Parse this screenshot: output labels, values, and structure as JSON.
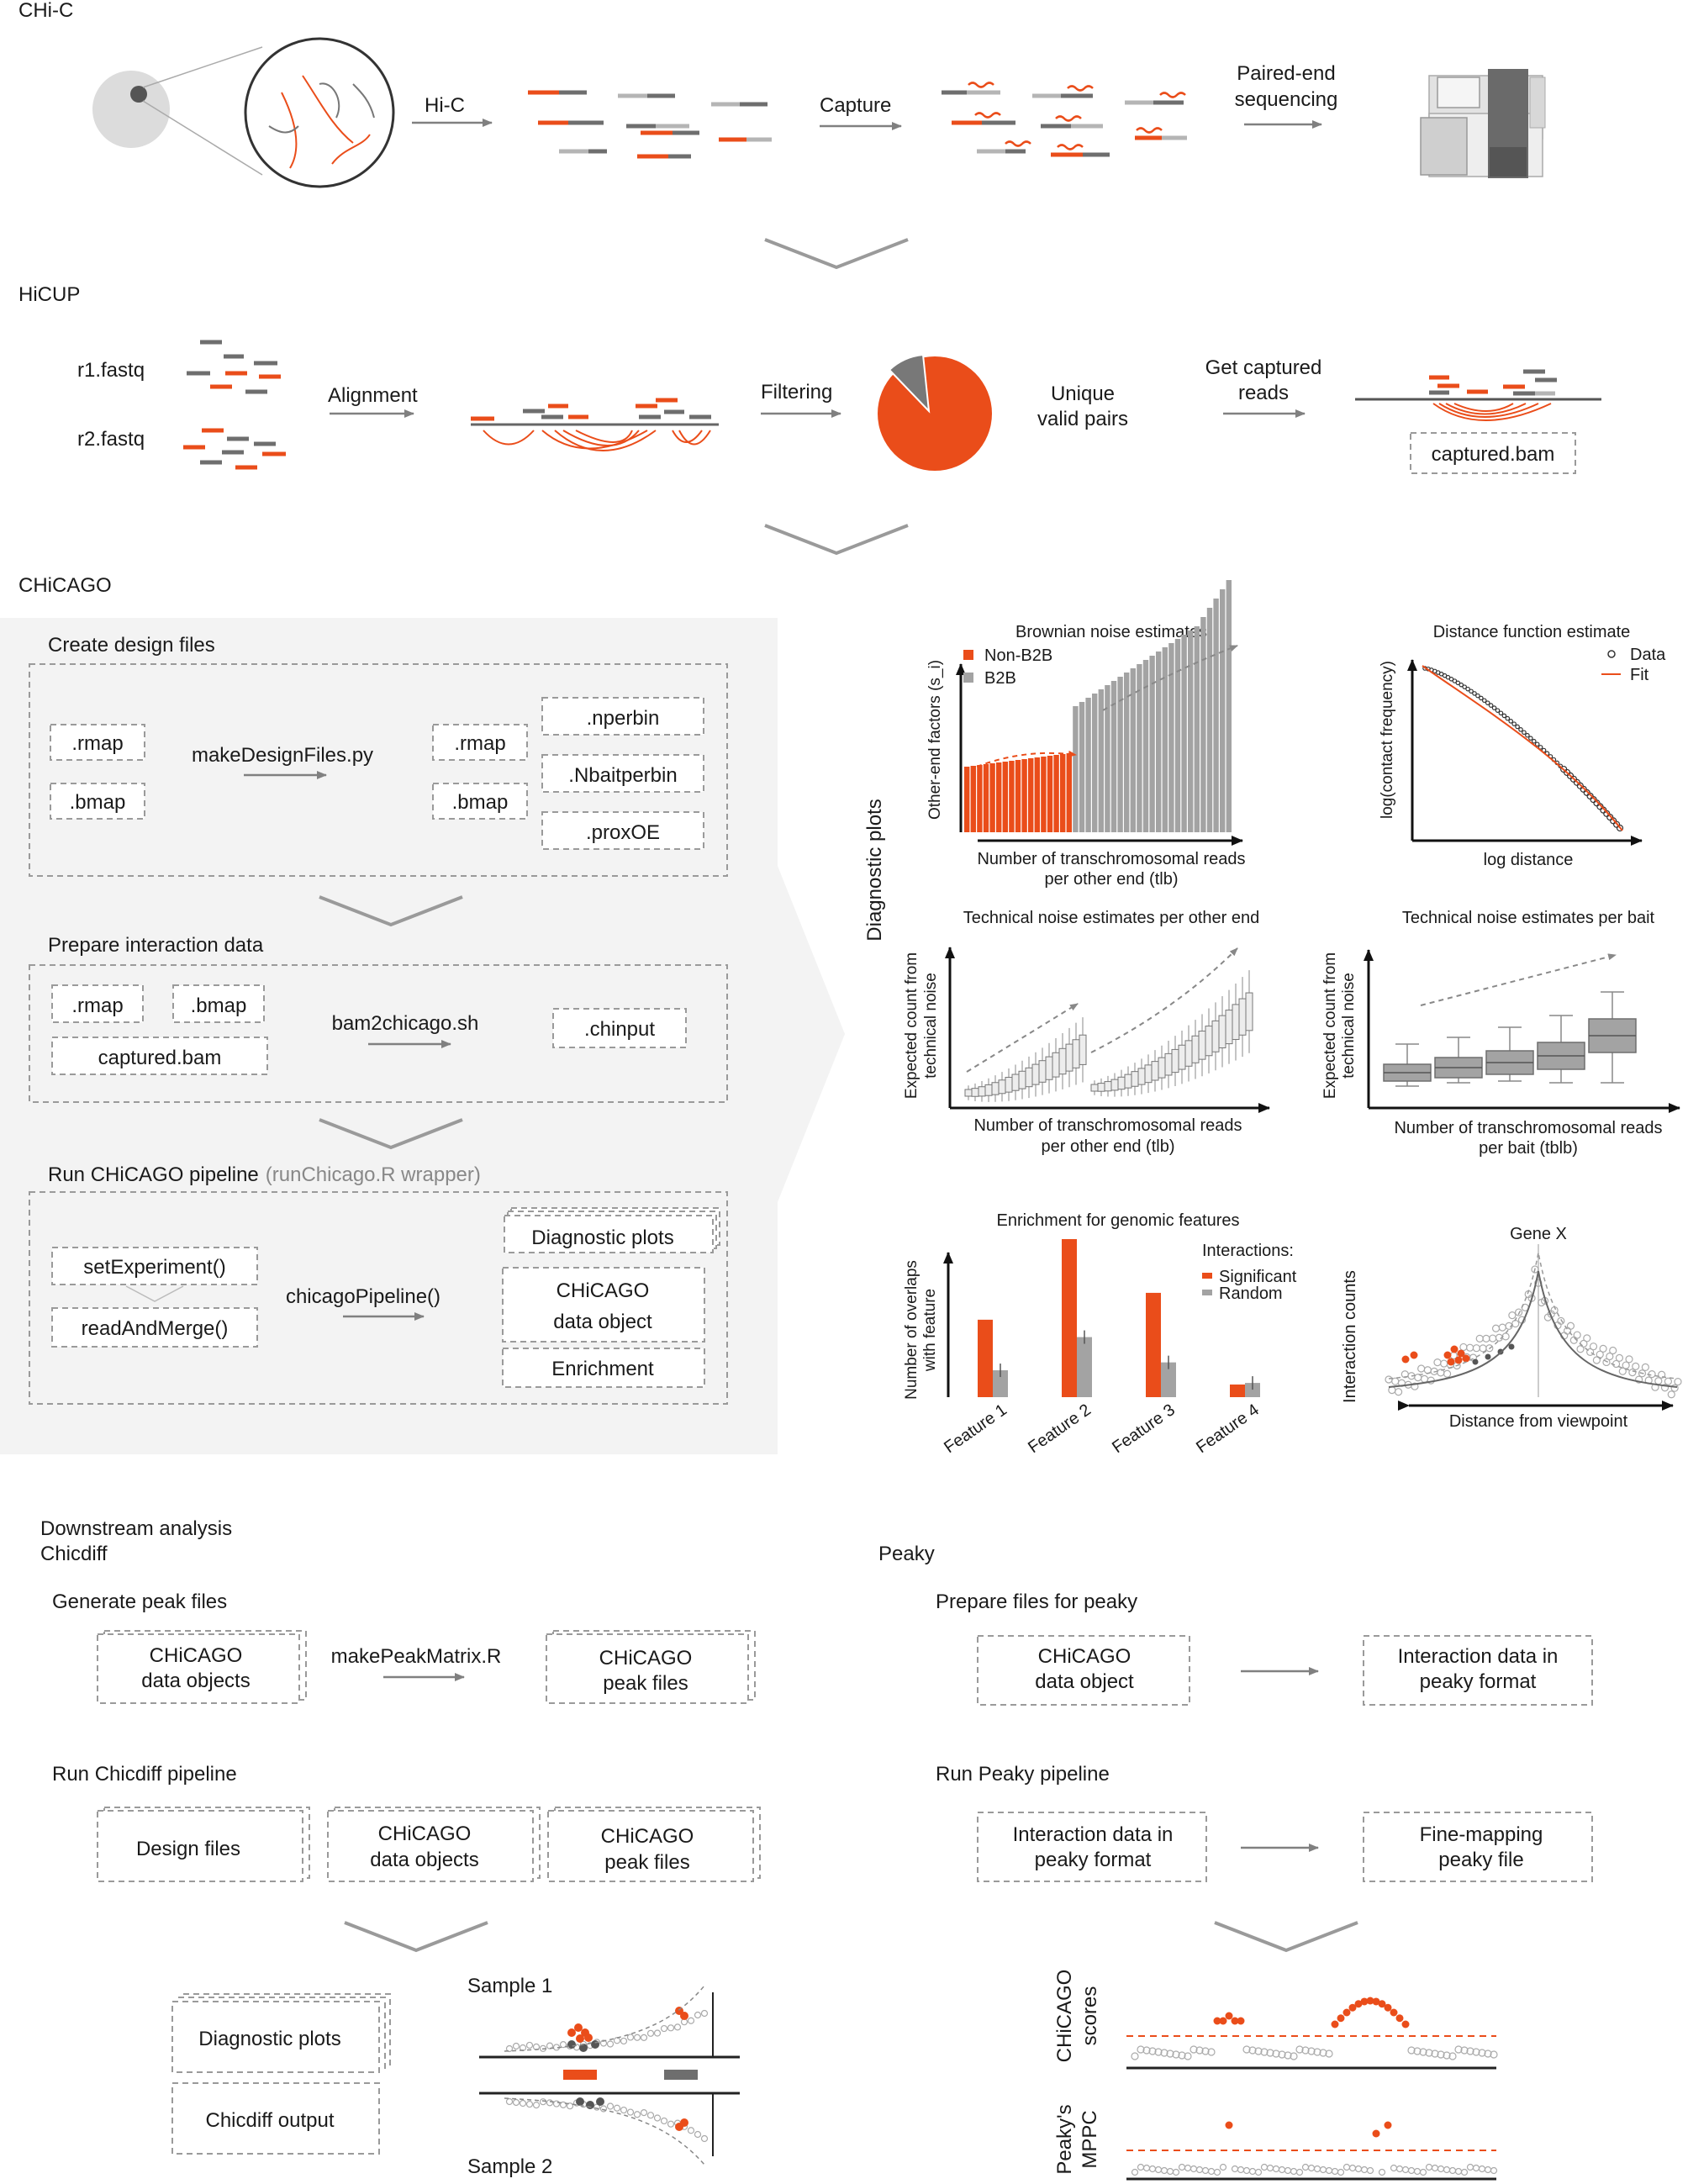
{
  "sections": {
    "chic": "CHi-C",
    "hicup": "HiCUP",
    "chicago": "CHiCAGO",
    "downstream": "Downstream analysis",
    "chicdiff": "Chicdiff",
    "peaky": "Peaky"
  },
  "chic": {
    "hic_label": "Hi-C",
    "capture_label": "Capture",
    "paired_line1": "Paired-end",
    "paired_line2": "sequencing"
  },
  "hicup": {
    "r1": "r1.fastq",
    "r2": "r2.fastq",
    "alignment": "Alignment",
    "filtering": "Filtering",
    "unique_line1": "Unique",
    "unique_line2": "valid pairs",
    "getcap_line1": "Get captured",
    "getcap_line2": "reads",
    "captured_bam": "captured.bam"
  },
  "chicago": {
    "design_title": "Create design files",
    "rmap": ".rmap",
    "bmap": ".bmap",
    "makeDesign": "makeDesignFiles.py",
    "nperbin": ".nperbin",
    "nbaitperbin": ".Nbaitperbin",
    "proxoe": ".proxOE",
    "prepare_title": "Prepare interaction data",
    "captured_bam": "captured.bam",
    "bam2chicago": "bam2chicago.sh",
    "chinput": ".chinput",
    "run_title": "Run CHiCAGO pipeline",
    "run_wrapper": "(runChicago.R wrapper)",
    "setExperiment": "setExperiment()",
    "readAndMerge": "readAndMerge()",
    "chicagoPipeline": "chicagoPipeline()",
    "out_diag": "Diagnostic plots",
    "out_obj1": "CHiCAGO",
    "out_obj2": "data object",
    "out_enrich": "Enrichment",
    "diag_vertical": "Diagnostic plots"
  },
  "plots": {
    "brownian": {
      "title": "Brownian noise estimates",
      "ylabel": "Other-end factors (s_i)",
      "xlabel1": "Number of transchromosomal reads",
      "xlabel2": "per other end (tlb)",
      "legend": [
        "Non-B2B",
        "B2B"
      ],
      "colors": [
        "#ea4d1a",
        "#a3a3a3"
      ]
    },
    "distance": {
      "title": "Distance function estimate",
      "ylabel": "log(contact frequency)",
      "xlabel": "log distance",
      "legend": [
        "Data",
        "Fit"
      ]
    },
    "tech_oe": {
      "title": "Technical noise estimates per other end",
      "ylabel1": "Expected count from",
      "ylabel2": "technical noise",
      "xlabel1": "Number of transchromosomal reads",
      "xlabel2": "per other end (tlb)"
    },
    "tech_bait": {
      "title": "Technical noise estimates per bait",
      "ylabel1": "Expected count from",
      "ylabel2": "technical noise",
      "xlabel1": "Number of transchromosomal reads",
      "xlabel2": "per bait (tblb)"
    },
    "enrichment": {
      "title": "Enrichment for genomic features",
      "ylabel1": "Number of overlaps",
      "ylabel2": "with feature",
      "legend_title": "Interactions:",
      "legend": [
        "Significant",
        "Random"
      ],
      "categories": [
        "Feature 1",
        "Feature 2",
        "Feature 3",
        "Feature 4"
      ],
      "significant": [
        0.49,
        1.0,
        0.66,
        0.08
      ],
      "random": [
        0.17,
        0.38,
        0.22,
        0.09
      ],
      "colors": [
        "#ea4d1a",
        "#a3a3a3"
      ]
    },
    "genex": {
      "title": "Gene X",
      "ylabel": "Interaction counts",
      "xlabel": "Distance from viewpoint"
    }
  },
  "chicdiff": {
    "gen_title": "Generate peak files",
    "obj_line1": "CHiCAGO",
    "obj_line2": "data objects",
    "makePeak": "makePeakMatrix.R",
    "peak_line1": "CHiCAGO",
    "peak_line2": "peak files",
    "run_title": "Run Chicdiff pipeline",
    "design_files": "Design files",
    "out_diag": "Diagnostic plots",
    "out_chicdiff": "Chicdiff output",
    "sample1": "Sample 1",
    "sample2": "Sample 2"
  },
  "peaky": {
    "prep_title": "Prepare files for peaky",
    "obj_line1": "CHiCAGO",
    "obj_line2": "data object",
    "fmt_line1": "Interaction data in",
    "fmt_line2": "peaky format",
    "run_title": "Run Peaky pipeline",
    "fine_line1": "Fine-mapping",
    "fine_line2": "peaky file",
    "scores_line1": "CHiCAGO",
    "scores_line2": "scores",
    "mppc_line1": "Peaky's",
    "mppc_line2": "MPPC"
  }
}
